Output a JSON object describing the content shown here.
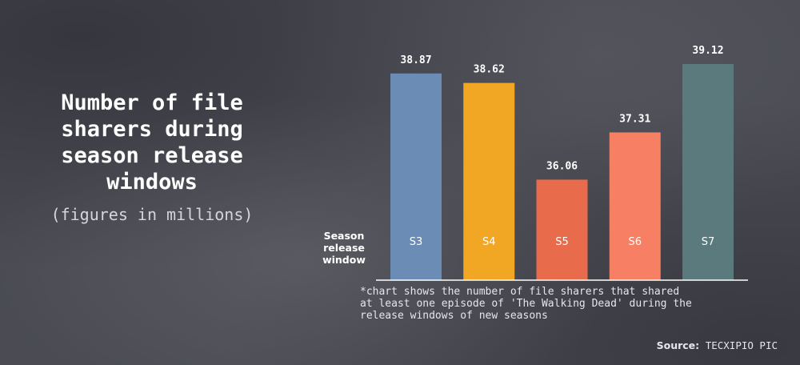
{
  "chart_data": {
    "type": "bar",
    "title": "Number of file sharers during season release windows",
    "subtitle": "(figures in millions)",
    "xlabel": "Season release window",
    "ylabel": "",
    "categories": [
      "S3",
      "S4",
      "S5",
      "S6",
      "S7"
    ],
    "values": [
      38.87,
      38.62,
      36.06,
      37.31,
      39.12
    ],
    "value_labels": [
      "38.87",
      "38.62",
      "36.06",
      "37.31",
      "39.12"
    ],
    "colors": [
      "#6b8db5",
      "#f2a724",
      "#e86c4c",
      "#f77f63",
      "#5a7a7d"
    ],
    "ylim": [
      33.4,
      39.12
    ],
    "grid": false,
    "legend": "none"
  },
  "title": {
    "lines": [
      "Number of file",
      "sharers during",
      "season release",
      "windows"
    ],
    "subtitle": "(figures in millions)"
  },
  "axis_label": {
    "lines": [
      "Season",
      "release",
      "window"
    ]
  },
  "footnote": {
    "lines": [
      "*chart shows the number of file sharers that shared",
      "at least one episode of 'The Walking Dead' during the",
      "release windows of new seasons"
    ]
  },
  "source": {
    "label": "Source:",
    "value": "TECXIPIO PIC"
  }
}
